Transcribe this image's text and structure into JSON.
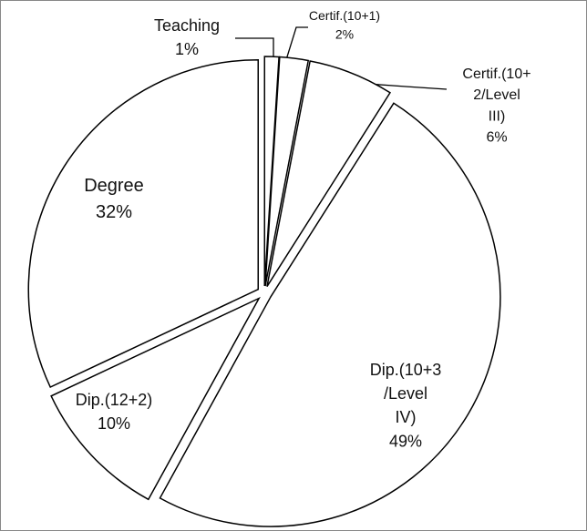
{
  "chart_data": {
    "type": "pie",
    "categories": [
      "Teaching",
      "Certif.(10+1)",
      "Certif.(10+ 2/Level III)",
      "Dip.(10+3 /Level IV)",
      "Dip.(12+2)",
      "Degree"
    ],
    "values": [
      1,
      2,
      6,
      49,
      10,
      32
    ],
    "value_labels": [
      "1%",
      "2%",
      "6%",
      "49%",
      "10%",
      "32%"
    ],
    "color": "#ffffff"
  }
}
